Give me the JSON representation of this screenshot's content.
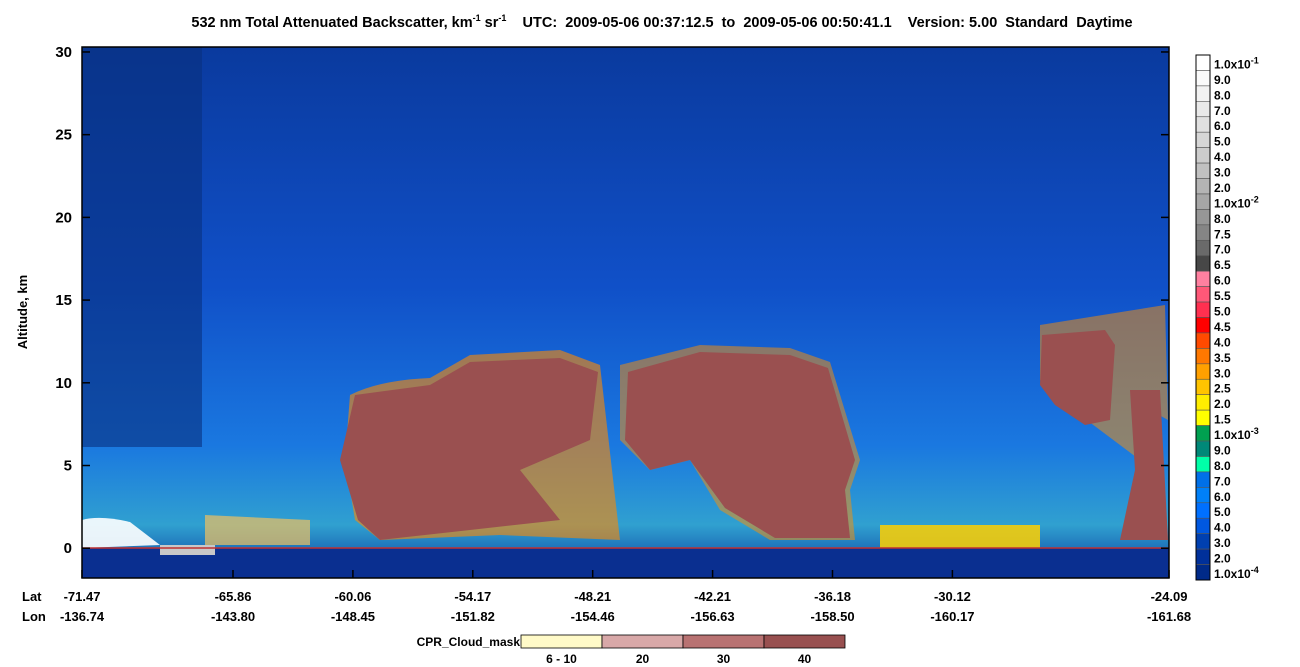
{
  "chart_data": {
    "type": "curtain",
    "title_parts": [
      {
        "text": "532 nm Total Attenuated Backscatter, km"
      },
      {
        "sup": "-1"
      },
      {
        "text": " sr"
      },
      {
        "sup": "-1"
      },
      {
        "text": "    UTC:  2009-05-06 00:37:12.5  to  2009-05-06 00:50:41.1    Version: 5.00  Standard  Daytime"
      }
    ],
    "y_label": "Altitude, km",
    "ylim": [
      -1.8,
      30.3
    ],
    "yticks": [
      0,
      5,
      10,
      15,
      20,
      25,
      30
    ],
    "x_row_labels": [
      "Lat",
      "Lon"
    ],
    "lat": [
      "-71.47",
      "-65.86",
      "-60.06",
      "-54.17",
      "-48.21",
      "-42.21",
      "-36.18",
      "-30.12",
      "-24.09"
    ],
    "lon": [
      "-136.74",
      "-143.80",
      "-148.45",
      "-151.82",
      "-154.46",
      "-156.63",
      "-158.50",
      "-160.17",
      "-161.68"
    ],
    "colorbar": {
      "labels": [
        {
          "text": "1.0x10",
          "sup": "-1"
        },
        "9.0",
        "8.0",
        "7.0",
        "6.0",
        "5.0",
        "4.0",
        "3.0",
        "2.0",
        {
          "text": "1.0x10",
          "sup": "-2"
        },
        "8.0",
        "7.5",
        "7.0",
        "6.5",
        "6.0",
        "5.5",
        "5.0",
        "4.5",
        "4.0",
        "3.5",
        "3.0",
        "2.5",
        "2.0",
        "1.5",
        {
          "text": "1.0x10",
          "sup": "-3"
        },
        "9.0",
        "8.0",
        "7.0",
        "6.0",
        "5.0",
        "4.0",
        "3.0",
        "2.0",
        {
          "text": "1.0x10",
          "sup": "-4"
        }
      ],
      "colors": [
        "#ffffff",
        "#fafafa",
        "#f2f2f2",
        "#e9e9e9",
        "#e0e0e0",
        "#d6d6d6",
        "#cccccc",
        "#c0c0c0",
        "#b4b4b4",
        "#a6a6a6",
        "#969696",
        "#858585",
        "#6a6a6a",
        "#474747",
        "#ff80a0",
        "#ff5878",
        "#ff3050",
        "#ff0000",
        "#ff4a00",
        "#ff7800",
        "#ffa000",
        "#ffc400",
        "#ffee00",
        "#ffff00",
        "#00a050",
        "#008878",
        "#00ffa8",
        "#0070e8",
        "#0080f8",
        "#0070ff",
        "#0058e0",
        "#0040b0",
        "#00309a",
        "#002a88"
      ]
    },
    "cpr_legend": {
      "title": "CPR_Cloud_mask",
      "labels": [
        "6 - 10",
        "20",
        "30",
        "40"
      ],
      "colors": [
        "#fffac8",
        "#d8a8a8",
        "#b87272",
        "#985050"
      ]
    }
  }
}
